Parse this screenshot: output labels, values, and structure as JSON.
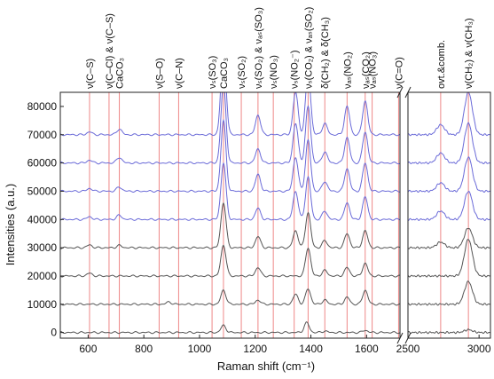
{
  "chart_data": {
    "type": "line",
    "xlabel": "Raman shift (cm⁻¹)",
    "ylabel": "Intensities (a.u.)",
    "ylim": [
      -2000,
      85000
    ],
    "axis_break": "between 1720 and 2500 cm⁻¹",
    "x_segments": [
      {
        "xlim": [
          500,
          1720
        ]
      },
      {
        "xlim": [
          2500,
          3080
        ]
      }
    ],
    "x_ticks": [
      {
        "value": 600,
        "label": "600"
      },
      {
        "value": 800,
        "label": "800"
      },
      {
        "value": 1000,
        "label": "1000"
      },
      {
        "value": 1200,
        "label": "1200"
      },
      {
        "value": 1400,
        "label": "1400"
      },
      {
        "value": 1600,
        "label": "1600"
      },
      {
        "value": 2500,
        "label": "2500"
      },
      {
        "value": 3000,
        "label": "3000"
      }
    ],
    "y_ticks": [
      {
        "value": 0,
        "label": "0"
      },
      {
        "value": 10000,
        "label": "10000"
      },
      {
        "value": 20000,
        "label": "20000"
      },
      {
        "value": 30000,
        "label": "30000"
      },
      {
        "value": 40000,
        "label": "40000"
      },
      {
        "value": 50000,
        "label": "50000"
      },
      {
        "value": 60000,
        "label": "60000"
      },
      {
        "value": 70000,
        "label": "70000"
      },
      {
        "value": 80000,
        "label": "80000"
      }
    ],
    "band_markers": [
      {
        "x": 605,
        "label": "ν(C–S)"
      },
      {
        "x": 675,
        "label": "ν(C–Cl) & ν(C–S)"
      },
      {
        "x": 712,
        "label": "CaCO₃"
      },
      {
        "x": 855,
        "label": "ν(S–O)"
      },
      {
        "x": 925,
        "label": "ν(C–N)"
      },
      {
        "x": 1045,
        "label": "νₛ(SO₃)"
      },
      {
        "x": 1086,
        "label": "CaCO₃"
      },
      {
        "x": 1150,
        "label": "νₛ(SO₂)"
      },
      {
        "x": 1210,
        "label": "νₛ(SO₂) & νₐₛ(SO₃)"
      },
      {
        "x": 1265,
        "label": "νₛ(NO₃)"
      },
      {
        "x": 1340,
        "label": "νₛ(NO₂⁻)"
      },
      {
        "x": 1390,
        "label": "νₛ(CO₂) & νₐₛ(SO₂)"
      },
      {
        "x": 1450,
        "label": "δ(CH₂) & δ(CH₃)"
      },
      {
        "x": 1530,
        "label": "νₐₛ(NO₂)"
      },
      {
        "x": 1595,
        "label": "νₐₛ(CO₂)"
      },
      {
        "x": 1620,
        "label": "νₐₛ(NO₃)"
      },
      {
        "x": 1715,
        "label": "ν(C=O)"
      },
      {
        "x": 2730,
        "label": "ovt.&comb."
      },
      {
        "x": 2925,
        "label": "ν(CH₂) & ν(CH₃)"
      }
    ],
    "series": [
      {
        "color": "#555555",
        "baseline": 0,
        "peaks": [
          [
            1086,
            2500
          ],
          [
            1385,
            3500
          ],
          [
            1450,
            500
          ],
          [
            1595,
            800
          ],
          [
            2925,
            1000
          ]
        ]
      },
      {
        "color": "#555555",
        "baseline": 10000,
        "peaks": [
          [
            890,
            800
          ],
          [
            1086,
            5000
          ],
          [
            1210,
            1500
          ],
          [
            1345,
            3500
          ],
          [
            1390,
            5500
          ],
          [
            1450,
            1500
          ],
          [
            1530,
            2500
          ],
          [
            1595,
            5000
          ],
          [
            2925,
            8000
          ]
        ]
      },
      {
        "color": "#555555",
        "baseline": 20000,
        "peaks": [
          [
            605,
            1000
          ],
          [
            1086,
            11000
          ],
          [
            1210,
            3000
          ],
          [
            1390,
            10000
          ],
          [
            1450,
            2000
          ],
          [
            1530,
            3000
          ],
          [
            1595,
            4500
          ],
          [
            2925,
            13000
          ]
        ]
      },
      {
        "color": "#555555",
        "baseline": 30000,
        "peaks": [
          [
            605,
            1000
          ],
          [
            712,
            800
          ],
          [
            1086,
            16000
          ],
          [
            1210,
            4000
          ],
          [
            1345,
            6000
          ],
          [
            1390,
            12500
          ],
          [
            1450,
            2500
          ],
          [
            1530,
            5000
          ],
          [
            1595,
            6000
          ],
          [
            2730,
            2000
          ],
          [
            2925,
            7000
          ]
        ]
      },
      {
        "color": "#6a6ad8",
        "baseline": 40000,
        "peaks": [
          [
            605,
            1000
          ],
          [
            712,
            1500
          ],
          [
            1086,
            20000
          ],
          [
            1210,
            4000
          ],
          [
            1345,
            10000
          ],
          [
            1390,
            15000
          ],
          [
            1450,
            3000
          ],
          [
            1530,
            6000
          ],
          [
            1595,
            8000
          ],
          [
            2730,
            3000
          ],
          [
            2925,
            10000
          ]
        ]
      },
      {
        "color": "#6a6ad8",
        "baseline": 50000,
        "peaks": [
          [
            605,
            1000
          ],
          [
            712,
            1500
          ],
          [
            1086,
            25000
          ],
          [
            1210,
            6000
          ],
          [
            1345,
            12000
          ],
          [
            1390,
            18000
          ],
          [
            1450,
            3500
          ],
          [
            1530,
            8000
          ],
          [
            1595,
            10000
          ],
          [
            2730,
            3000
          ],
          [
            2925,
            12000
          ]
        ]
      },
      {
        "color": "#6a6ad8",
        "baseline": 60000,
        "peaks": [
          [
            605,
            1000
          ],
          [
            712,
            2000
          ],
          [
            1086,
            28000
          ],
          [
            1210,
            5000
          ],
          [
            1345,
            14000
          ],
          [
            1390,
            20000
          ],
          [
            1450,
            4000
          ],
          [
            1530,
            9000
          ],
          [
            1595,
            11000
          ],
          [
            2730,
            3500
          ],
          [
            2925,
            14000
          ]
        ]
      },
      {
        "color": "#6a6ad8",
        "baseline": 70000,
        "peaks": [
          [
            605,
            1000
          ],
          [
            712,
            2000
          ],
          [
            1086,
            32000
          ],
          [
            1210,
            7000
          ],
          [
            1345,
            15000
          ],
          [
            1390,
            22000
          ],
          [
            1450,
            4000
          ],
          [
            1530,
            10000
          ],
          [
            1595,
            12000
          ],
          [
            2730,
            3500
          ],
          [
            2925,
            15000
          ]
        ]
      }
    ]
  }
}
